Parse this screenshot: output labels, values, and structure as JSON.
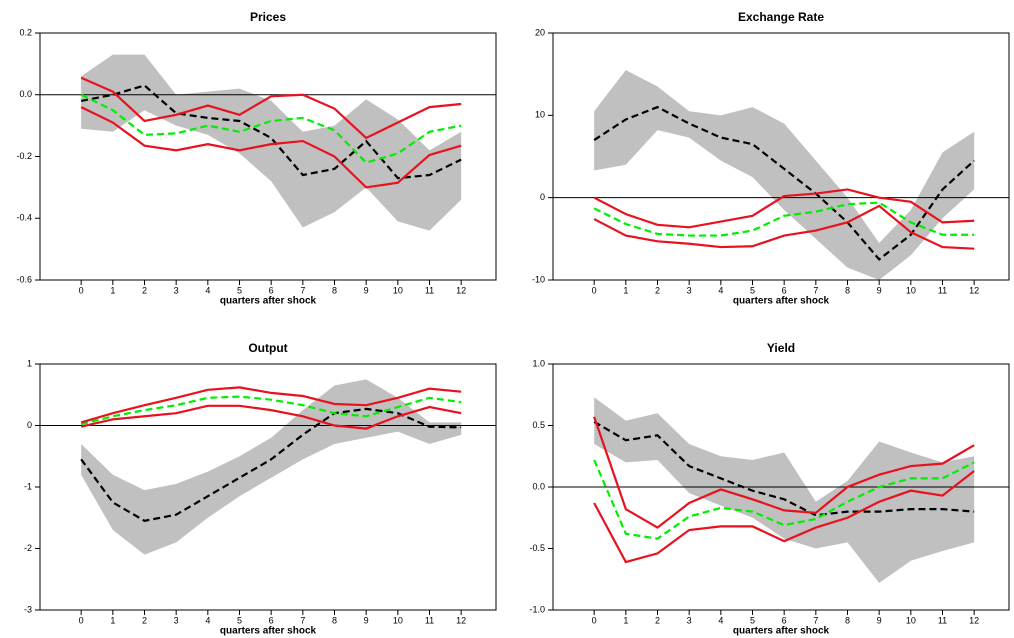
{
  "chart_data": [
    {
      "type": "line",
      "title": "Prices",
      "xlabel": "quarters after shock",
      "x": [
        0,
        1,
        2,
        3,
        4,
        5,
        6,
        7,
        8,
        9,
        10,
        11,
        12
      ],
      "xlim": [
        -1.3,
        13.1
      ],
      "xticks": [
        0,
        1,
        2,
        3,
        4,
        5,
        6,
        7,
        8,
        9,
        10,
        11,
        12
      ],
      "ylim": [
        -0.6,
        0.2
      ],
      "yticks": [
        -0.6,
        -0.4,
        -0.2,
        {
          "value": 0,
          "label": "0.0"
        },
        0.2
      ],
      "zero_line": true,
      "band": {
        "color": "#c0c0c0",
        "upper": [
          0.06,
          0.13,
          0.13,
          0.0,
          0.01,
          0.02,
          -0.02,
          -0.12,
          -0.1,
          -0.015,
          -0.08,
          -0.18,
          -0.12
        ],
        "lower": [
          -0.11,
          -0.12,
          -0.05,
          -0.1,
          -0.13,
          -0.19,
          -0.28,
          -0.43,
          -0.38,
          -0.3,
          -0.41,
          -0.44,
          -0.34
        ]
      },
      "series": [
        {
          "color": "#000000",
          "dash": true,
          "values": [
            -0.02,
            0.0,
            0.03,
            -0.06,
            -0.075,
            -0.085,
            -0.14,
            -0.26,
            -0.24,
            -0.15,
            -0.27,
            -0.26,
            -0.21
          ]
        },
        {
          "color": "#00ee00",
          "dash": true,
          "values": [
            0.0,
            -0.05,
            -0.13,
            -0.125,
            -0.1,
            -0.12,
            -0.085,
            -0.075,
            -0.115,
            -0.22,
            -0.19,
            -0.12,
            -0.1
          ]
        },
        {
          "color": "#e8121e",
          "dash": false,
          "values": [
            0.055,
            0.01,
            -0.085,
            -0.065,
            -0.035,
            -0.065,
            -0.005,
            0.0,
            -0.045,
            -0.14,
            -0.09,
            -0.04,
            -0.03
          ]
        },
        {
          "color": "#e8121e",
          "dash": false,
          "values": [
            -0.04,
            -0.09,
            -0.165,
            -0.18,
            -0.16,
            -0.18,
            -0.16,
            -0.15,
            -0.2,
            -0.3,
            -0.285,
            -0.195,
            -0.165
          ]
        }
      ]
    },
    {
      "type": "line",
      "title": "Exchange Rate",
      "xlabel": "quarters after shock",
      "x": [
        0,
        1,
        2,
        3,
        4,
        5,
        6,
        7,
        8,
        9,
        10,
        11,
        12
      ],
      "xlim": [
        -1.3,
        13.1
      ],
      "xticks": [
        0,
        1,
        2,
        3,
        4,
        5,
        6,
        7,
        8,
        9,
        10,
        11,
        12
      ],
      "ylim": [
        -10,
        20
      ],
      "yticks": [
        -10,
        0,
        10,
        20
      ],
      "zero_line": true,
      "band": {
        "color": "#c0c0c0",
        "upper": [
          10.5,
          15.5,
          13.5,
          10.5,
          10,
          11,
          9,
          4.5,
          0,
          -5.5,
          -1.5,
          5.5,
          8
        ],
        "lower": [
          3.3,
          4,
          8.2,
          7.3,
          4.5,
          2.5,
          -1.5,
          -5,
          -8.5,
          -10,
          -7,
          -2.5,
          1
        ]
      },
      "series": [
        {
          "color": "#000000",
          "dash": true,
          "values": [
            7,
            9.5,
            11,
            9,
            7.3,
            6.5,
            3.5,
            0.5,
            -3,
            -7.5,
            -4.5,
            1,
            4.5
          ]
        },
        {
          "color": "#00ee00",
          "dash": true,
          "values": [
            -1.3,
            -3.2,
            -4.4,
            -4.6,
            -4.6,
            -4.0,
            -2.2,
            -1.7,
            -0.8,
            -0.6,
            -3.0,
            -4.5,
            -4.5
          ]
        },
        {
          "color": "#e8121e",
          "dash": false,
          "values": [
            0,
            -2,
            -3.3,
            -3.6,
            -2.9,
            -2.2,
            0.2,
            0.5,
            1.0,
            0,
            -0.5,
            -3,
            -2.8
          ]
        },
        {
          "color": "#e8121e",
          "dash": false,
          "values": [
            -2.6,
            -4.6,
            -5.3,
            -5.6,
            -6,
            -5.9,
            -4.6,
            -4,
            -3,
            -1,
            -4.2,
            -6,
            -6.2
          ]
        }
      ]
    },
    {
      "type": "line",
      "title": "Output",
      "xlabel": "quarters after shock",
      "x": [
        0,
        1,
        2,
        3,
        4,
        5,
        6,
        7,
        8,
        9,
        10,
        11,
        12
      ],
      "xlim": [
        -1.3,
        13.1
      ],
      "xticks": [
        0,
        1,
        2,
        3,
        4,
        5,
        6,
        7,
        8,
        9,
        10,
        11,
        12
      ],
      "ylim": [
        -3,
        1
      ],
      "yticks": [
        -3,
        -2,
        -1,
        0,
        1
      ],
      "zero_line": true,
      "band": {
        "color": "#c0c0c0",
        "upper": [
          -0.3,
          -0.8,
          -1.05,
          -0.95,
          -0.75,
          -0.5,
          -0.2,
          0.25,
          0.65,
          0.75,
          0.45,
          0.05,
          0.05
        ],
        "lower": [
          -0.8,
          -1.7,
          -2.1,
          -1.9,
          -1.5,
          -1.15,
          -0.85,
          -0.55,
          -0.3,
          -0.2,
          -0.1,
          -0.3,
          -0.15
        ]
      },
      "series": [
        {
          "color": "#000000",
          "dash": true,
          "values": [
            -0.55,
            -1.25,
            -1.55,
            -1.45,
            -1.15,
            -0.85,
            -0.55,
            -0.15,
            0.2,
            0.27,
            0.2,
            -0.02,
            -0.03
          ]
        },
        {
          "color": "#00ee00",
          "dash": true,
          "values": [
            0.02,
            0.15,
            0.25,
            0.33,
            0.45,
            0.47,
            0.42,
            0.33,
            0.2,
            0.15,
            0.3,
            0.45,
            0.38
          ]
        },
        {
          "color": "#e8121e",
          "dash": false,
          "values": [
            0.05,
            0.2,
            0.33,
            0.45,
            0.58,
            0.62,
            0.53,
            0.48,
            0.35,
            0.33,
            0.45,
            0.6,
            0.55
          ]
        },
        {
          "color": "#e8121e",
          "dash": false,
          "values": [
            -0.02,
            0.1,
            0.15,
            0.2,
            0.32,
            0.32,
            0.25,
            0.15,
            0.0,
            -0.05,
            0.15,
            0.3,
            0.2
          ]
        }
      ]
    },
    {
      "type": "line",
      "title": "Yield",
      "xlabel": "quarters after shock",
      "x": [
        0,
        1,
        2,
        3,
        4,
        5,
        6,
        7,
        8,
        9,
        10,
        11,
        12
      ],
      "xlim": [
        -1.3,
        13.1
      ],
      "xticks": [
        0,
        1,
        2,
        3,
        4,
        5,
        6,
        7,
        8,
        9,
        10,
        11,
        12
      ],
      "ylim": [
        -1,
        1
      ],
      "yticks": [
        {
          "value": -1,
          "label": "-1.0"
        },
        -0.5,
        {
          "value": 0,
          "label": "0.0"
        },
        0.5,
        {
          "value": 1,
          "label": "1.0"
        }
      ],
      "zero_line": true,
      "band": {
        "color": "#c0c0c0",
        "upper": [
          0.73,
          0.54,
          0.6,
          0.35,
          0.25,
          0.22,
          0.28,
          -0.12,
          0.05,
          0.37,
          0.28,
          0.2,
          0.25
        ],
        "lower": [
          0.35,
          0.2,
          0.22,
          -0.05,
          -0.15,
          -0.25,
          -0.42,
          -0.5,
          -0.45,
          -0.78,
          -0.6,
          -0.52,
          -0.45
        ]
      },
      "series": [
        {
          "color": "#000000",
          "dash": true,
          "values": [
            0.53,
            0.38,
            0.42,
            0.17,
            0.07,
            -0.03,
            -0.1,
            -0.23,
            -0.2,
            -0.2,
            -0.18,
            -0.18,
            -0.2
          ]
        },
        {
          "color": "#00ee00",
          "dash": true,
          "values": [
            0.22,
            -0.38,
            -0.42,
            -0.24,
            -0.17,
            -0.2,
            -0.31,
            -0.26,
            -0.12,
            0.0,
            0.07,
            0.07,
            0.2
          ]
        },
        {
          "color": "#e8121e",
          "dash": false,
          "values": [
            0.57,
            -0.18,
            -0.33,
            -0.13,
            -0.02,
            -0.1,
            -0.19,
            -0.21,
            0.0,
            0.1,
            0.17,
            0.19,
            0.34
          ]
        },
        {
          "color": "#e8121e",
          "dash": false,
          "values": [
            -0.13,
            -0.61,
            -0.54,
            -0.35,
            -0.32,
            -0.32,
            -0.44,
            -0.33,
            -0.25,
            -0.12,
            -0.03,
            -0.07,
            0.13
          ]
        }
      ]
    }
  ]
}
